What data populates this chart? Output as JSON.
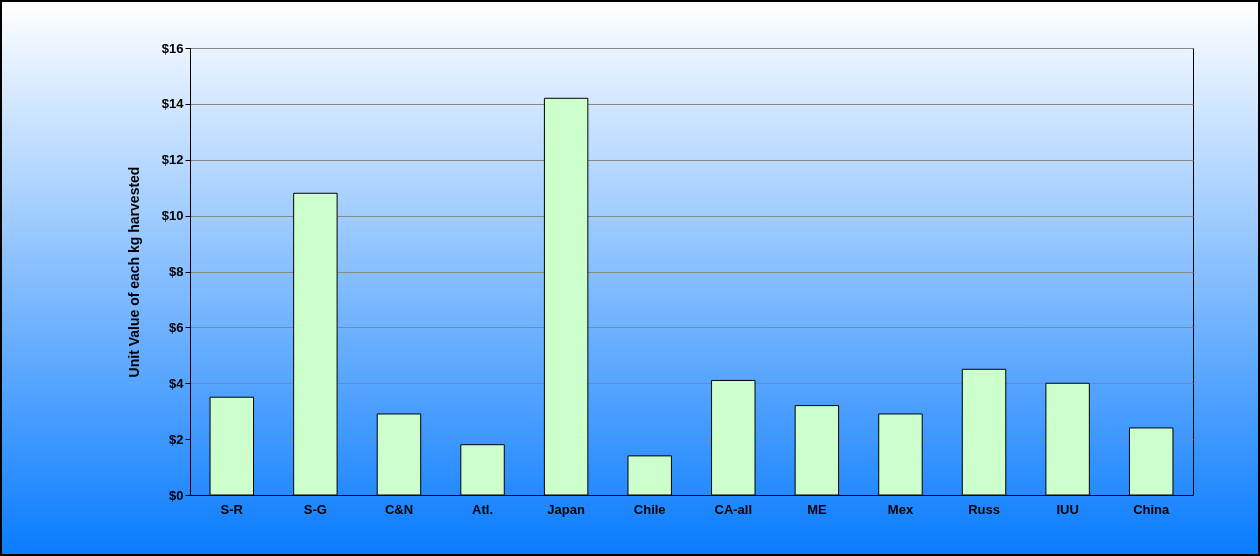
{
  "chart_data": {
    "type": "bar",
    "ylabel": "Unit Value of each kg harvested",
    "categories": [
      "S-R",
      "S-G",
      "C&N",
      "Atl.",
      "Japan",
      "Chile",
      "CA-all",
      "ME",
      "Mex",
      "Russ",
      "IUU",
      "China"
    ],
    "values": [
      3.5,
      10.8,
      2.9,
      1.8,
      14.2,
      1.4,
      4.1,
      3.2,
      2.9,
      4.5,
      4.0,
      2.4
    ],
    "color": "#ccffcc",
    "ylim": [
      0,
      16
    ],
    "yticks": [
      {
        "value": 0,
        "label": "$0"
      },
      {
        "value": 2,
        "label": "$2"
      },
      {
        "value": 4,
        "label": "$4"
      },
      {
        "value": 6,
        "label": "$6"
      },
      {
        "value": 8,
        "label": "$8"
      },
      {
        "value": 10,
        "label": "$10"
      },
      {
        "value": 12,
        "label": "$12"
      },
      {
        "value": 14,
        "label": "$14"
      },
      {
        "value": 16,
        "label": "$16"
      }
    ],
    "grid": "y"
  }
}
